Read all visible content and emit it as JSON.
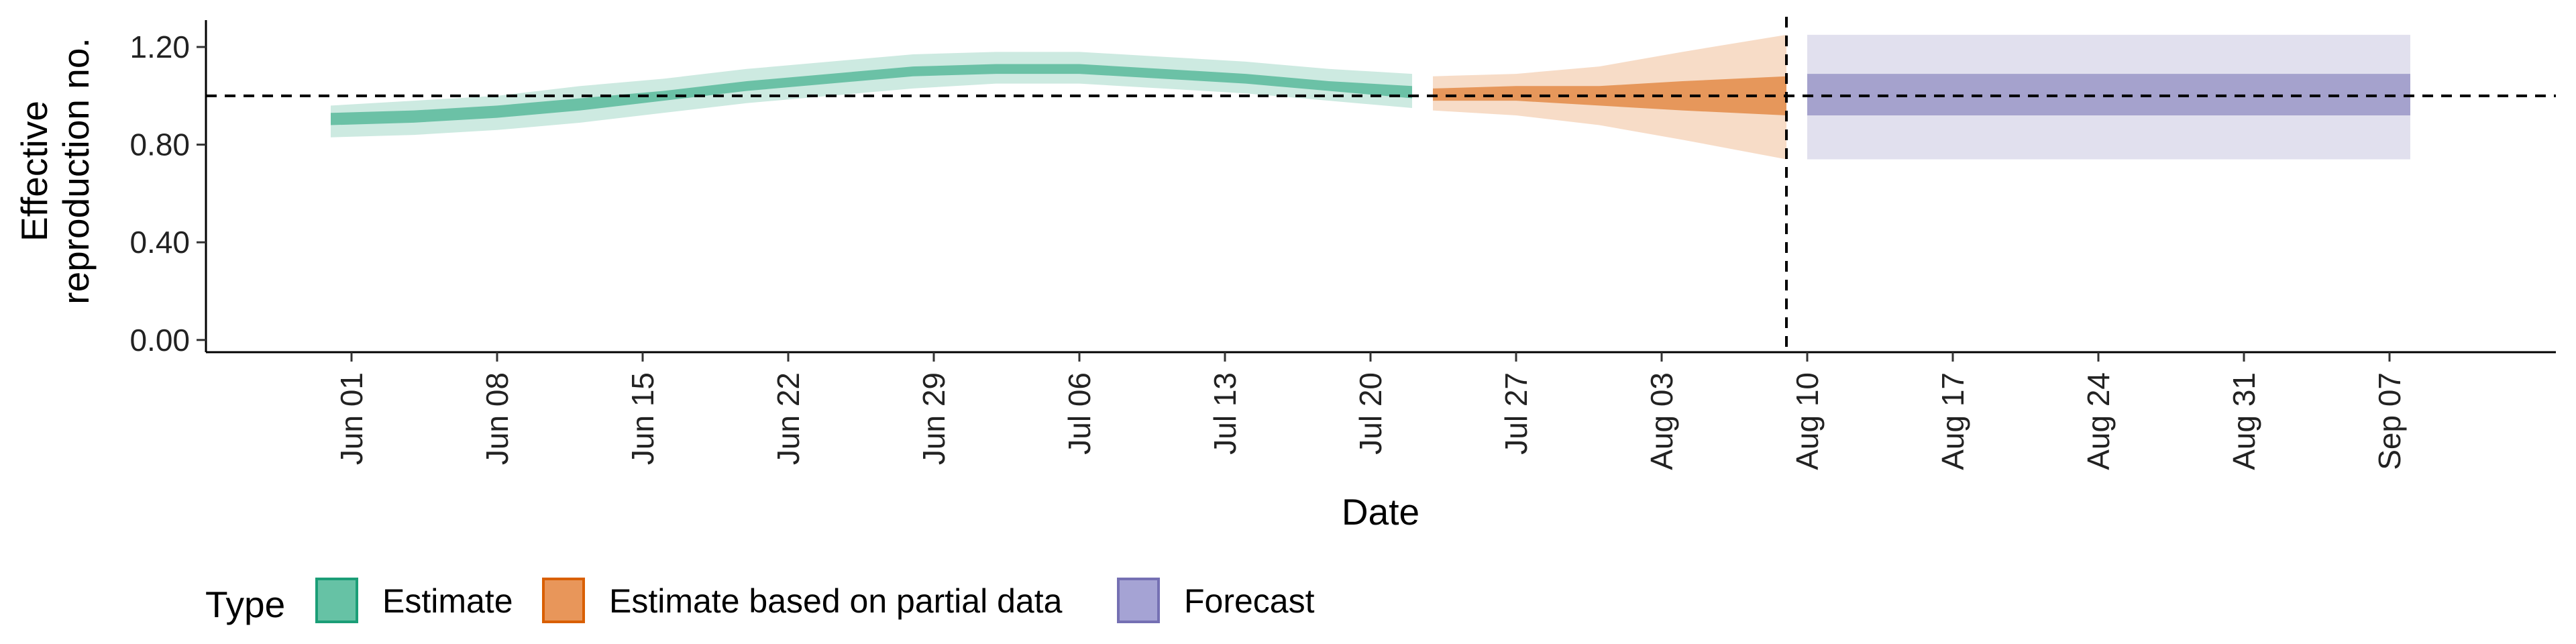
{
  "chart_data": {
    "type": "area",
    "xlabel": "Date",
    "ylabel_lines": [
      "Effective",
      "reproduction no."
    ],
    "y_ticks": [
      0.0,
      0.4,
      0.8,
      1.2
    ],
    "y_tick_labels": [
      "0.00",
      "0.40",
      "0.80",
      "1.20"
    ],
    "ylim": [
      -0.05,
      1.31
    ],
    "x_ticks": [
      "2020-06-01",
      "2020-06-08",
      "2020-06-15",
      "2020-06-22",
      "2020-06-29",
      "2020-07-06",
      "2020-07-13",
      "2020-07-20",
      "2020-07-27",
      "2020-08-03",
      "2020-08-10",
      "2020-08-17",
      "2020-08-24",
      "2020-08-31",
      "2020-09-07"
    ],
    "x_tick_labels": [
      "Jun 01",
      "Jun 08",
      "Jun 15",
      "Jun 22",
      "Jun 29",
      "Jul 06",
      "Jul 13",
      "Jul 20",
      "Jul 27",
      "Aug 03",
      "Aug 10",
      "Aug 17",
      "Aug 24",
      "Aug 31",
      "Sep 07"
    ],
    "xlim": [
      "2020-05-25",
      "2020-09-15"
    ],
    "reference_line_y": 1.0,
    "reference_line_x": "2020-08-09",
    "legend": {
      "title": "Type",
      "position": "bottom",
      "entries": [
        {
          "label": "Estimate",
          "fill": "#66c2a5",
          "stroke": "#1b9e77"
        },
        {
          "label": "Estimate based on partial data",
          "fill": "#e8965a",
          "stroke": "#d95f02"
        },
        {
          "label": "Forecast",
          "fill": "#a5a3d4",
          "stroke": "#7570b3"
        }
      ]
    },
    "series": [
      {
        "name": "Estimate",
        "color": "#1b9e77",
        "points": [
          {
            "x": "2020-05-31",
            "lower90": 0.83,
            "lower50": 0.88,
            "upper50": 0.93,
            "upper90": 0.96
          },
          {
            "x": "2020-06-04",
            "lower90": 0.84,
            "lower50": 0.89,
            "upper50": 0.94,
            "upper90": 0.98
          },
          {
            "x": "2020-06-08",
            "lower90": 0.86,
            "lower50": 0.91,
            "upper50": 0.96,
            "upper90": 1.0
          },
          {
            "x": "2020-06-12",
            "lower90": 0.89,
            "lower50": 0.94,
            "upper50": 0.99,
            "upper90": 1.04
          },
          {
            "x": "2020-06-16",
            "lower90": 0.93,
            "lower50": 0.98,
            "upper50": 1.02,
            "upper90": 1.07
          },
          {
            "x": "2020-06-20",
            "lower90": 0.97,
            "lower50": 1.02,
            "upper50": 1.06,
            "upper90": 1.11
          },
          {
            "x": "2020-06-24",
            "lower90": 1.0,
            "lower50": 1.05,
            "upper50": 1.09,
            "upper90": 1.14
          },
          {
            "x": "2020-06-28",
            "lower90": 1.03,
            "lower50": 1.08,
            "upper50": 1.12,
            "upper90": 1.17
          },
          {
            "x": "2020-07-02",
            "lower90": 1.05,
            "lower50": 1.09,
            "upper50": 1.13,
            "upper90": 1.18
          },
          {
            "x": "2020-07-06",
            "lower90": 1.05,
            "lower50": 1.09,
            "upper50": 1.13,
            "upper90": 1.18
          },
          {
            "x": "2020-07-10",
            "lower90": 1.03,
            "lower50": 1.07,
            "upper50": 1.11,
            "upper90": 1.16
          },
          {
            "x": "2020-07-14",
            "lower90": 1.01,
            "lower50": 1.05,
            "upper50": 1.09,
            "upper90": 1.14
          },
          {
            "x": "2020-07-18",
            "lower90": 0.98,
            "lower50": 1.02,
            "upper50": 1.06,
            "upper90": 1.11
          },
          {
            "x": "2020-07-22",
            "lower90": 0.95,
            "lower50": 0.99,
            "upper50": 1.04,
            "upper90": 1.09
          }
        ]
      },
      {
        "name": "Estimate based on partial data",
        "color": "#d95f02",
        "points": [
          {
            "x": "2020-07-23",
            "lower90": 0.94,
            "lower50": 0.98,
            "upper50": 1.03,
            "upper90": 1.08
          },
          {
            "x": "2020-07-27",
            "lower90": 0.92,
            "lower50": 0.98,
            "upper50": 1.04,
            "upper90": 1.09
          },
          {
            "x": "2020-07-31",
            "lower90": 0.88,
            "lower50": 0.96,
            "upper50": 1.04,
            "upper90": 1.12
          },
          {
            "x": "2020-08-04",
            "lower90": 0.82,
            "lower50": 0.94,
            "upper50": 1.06,
            "upper90": 1.18
          },
          {
            "x": "2020-08-09",
            "lower90": 0.74,
            "lower50": 0.92,
            "upper50": 1.08,
            "upper90": 1.25
          }
        ]
      },
      {
        "name": "Forecast",
        "color": "#7570b3",
        "points": [
          {
            "x": "2020-08-10",
            "lower90": 0.74,
            "lower50": 0.92,
            "upper50": 1.09,
            "upper90": 1.25
          },
          {
            "x": "2020-09-08",
            "lower90": 0.74,
            "lower50": 0.92,
            "upper50": 1.09,
            "upper90": 1.25
          }
        ]
      }
    ]
  }
}
